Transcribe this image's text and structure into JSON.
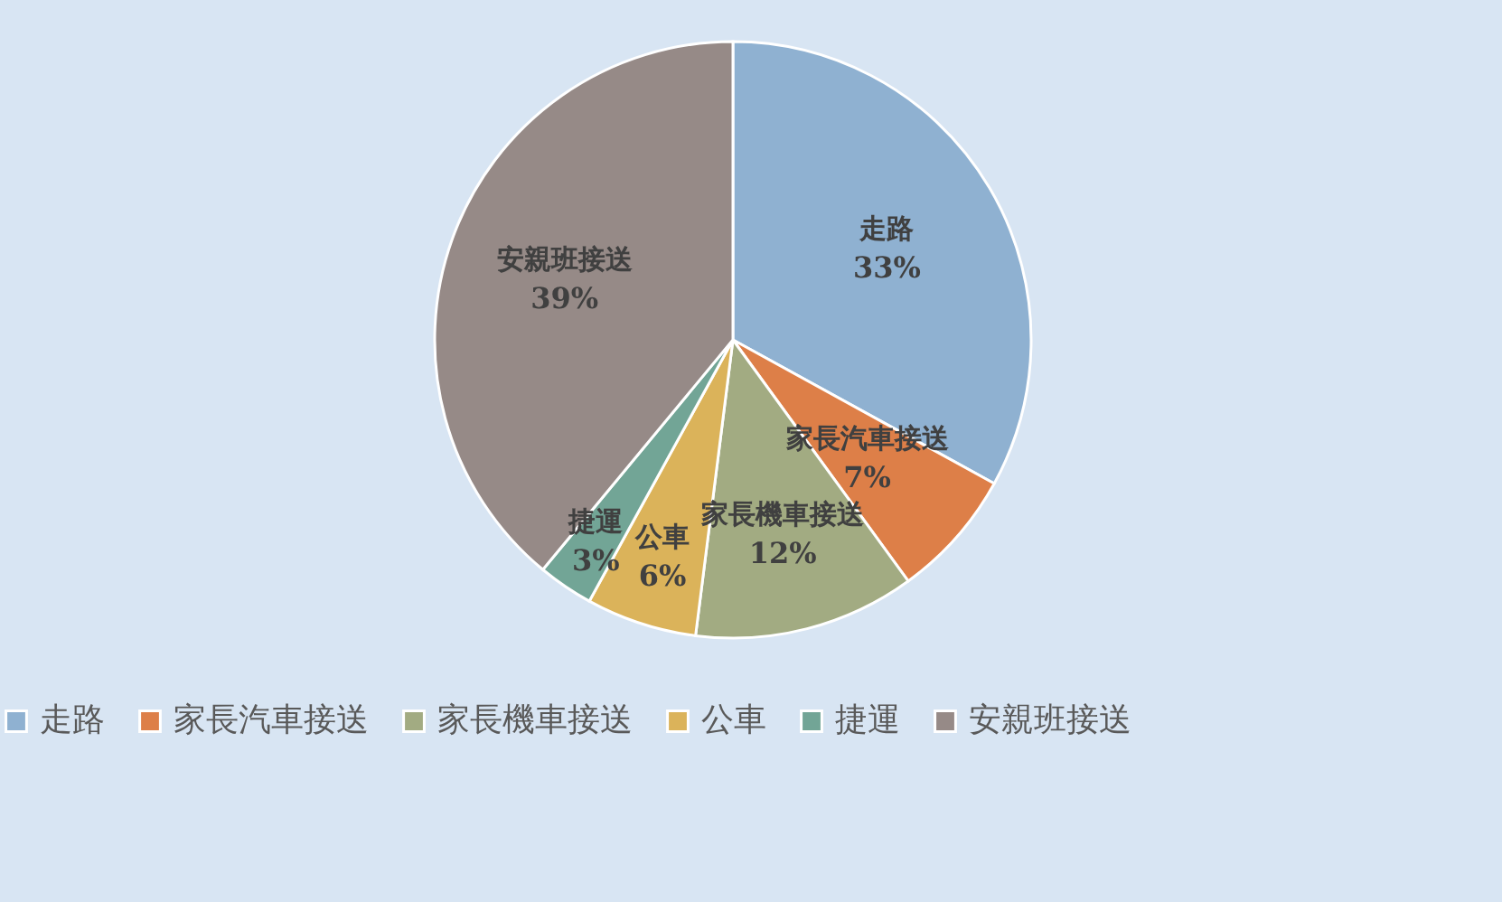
{
  "chart_data": {
    "type": "pie",
    "categories": [
      "走路",
      "家長汽車接送",
      "家長機車接送",
      "公車",
      "捷運",
      "安親班接送"
    ],
    "values": [
      33,
      7,
      12,
      6,
      3,
      39
    ],
    "colors": [
      "#8fb1d1",
      "#dd7f48",
      "#a2ab82",
      "#dbb35a",
      "#72a596",
      "#968a87"
    ],
    "value_labels": [
      "33%",
      "7%",
      "12%",
      "6%",
      "3%",
      "39%"
    ],
    "legend": "bottom"
  }
}
